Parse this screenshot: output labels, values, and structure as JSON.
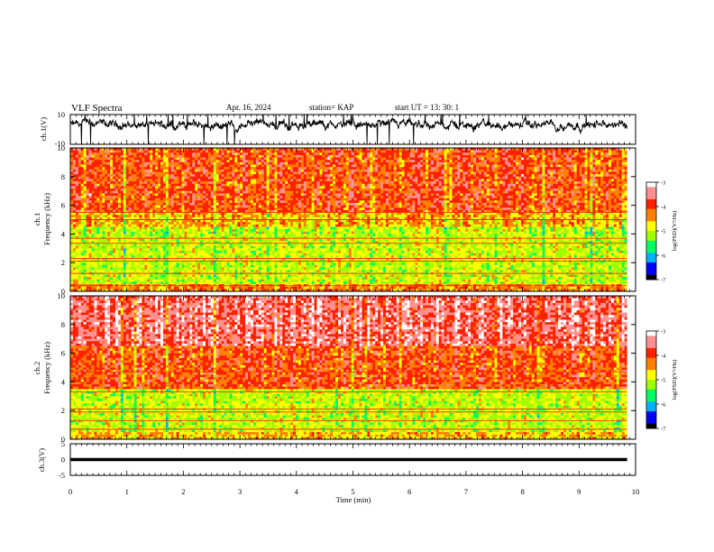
{
  "header": {
    "title": "VLF Spectra",
    "date": "Apr. 16, 2024",
    "station": "station= KAP",
    "start_time": "start UT =  13: 30: 1"
  },
  "colors": {
    "colormap": [
      "#000000",
      "#0000ff",
      "#00b0ff",
      "#00ff60",
      "#a0ff00",
      "#ffff00",
      "#ff8000",
      "#ff2000",
      "#ff9090",
      "#ffffff"
    ]
  },
  "chart_data": [
    {
      "type": "line",
      "name": "ch1-waveform",
      "ylabel": "ch.1(V)",
      "ylim": [
        -10,
        10
      ],
      "yticks": [
        "10",
        "-10"
      ],
      "xlim": [
        0,
        10
      ],
      "note_values": "noisy signal oscillating roughly between -4 and 8 V with spikes clipped at +/-10",
      "mean": 3,
      "amplitude": 3,
      "x_end": 9.85
    },
    {
      "type": "heatmap",
      "name": "ch1-spectrogram",
      "ylabel": "ch.1\nFrequency (kHz)",
      "ylim": [
        0,
        10
      ],
      "yticks": [
        "10",
        "8",
        "6",
        "4",
        "2",
        "0"
      ],
      "xlim": [
        0,
        10
      ],
      "x_end": 9.85,
      "colorbar": {
        "label": "log(PSD)(V²/Hz)",
        "ticks": [
          "-3",
          "-4",
          "-5",
          "-6",
          "-7"
        ],
        "range": [
          -7,
          -3
        ]
      },
      "bands": [
        {
          "f_from": 0,
          "f_to": 0.5,
          "level": -4.3
        },
        {
          "f_from": 0.5,
          "f_to": 4.5,
          "level": -5.0
        },
        {
          "f_from": 4.5,
          "f_to": 5.5,
          "level": -4.5
        },
        {
          "f_from": 5.5,
          "f_to": 10,
          "level": -4.0
        }
      ],
      "lines_khz": [
        0.4,
        1.25,
        2.1,
        2.3,
        3.35,
        3.7,
        5.0,
        5.5
      ]
    },
    {
      "type": "heatmap",
      "name": "ch2-spectrogram",
      "ylabel": "ch.2\nFrequency (kHz)",
      "ylim": [
        0,
        10
      ],
      "yticks": [
        "10",
        "8",
        "6",
        "4",
        "2",
        "0"
      ],
      "xlim": [
        0,
        10
      ],
      "x_end": 9.85,
      "colorbar": {
        "label": "log(PSD)(V²/Hz)",
        "ticks": [
          "-3",
          "-4",
          "-5",
          "-6",
          "-7"
        ],
        "range": [
          -7,
          -3
        ]
      },
      "bands": [
        {
          "f_from": 0,
          "f_to": 0.5,
          "level": -4.5
        },
        {
          "f_from": 0.5,
          "f_to": 3.5,
          "level": -5.0
        },
        {
          "f_from": 3.5,
          "f_to": 6.5,
          "level": -4.0
        },
        {
          "f_from": 6.5,
          "f_to": 10,
          "level": -3.5
        }
      ],
      "lines_khz": [
        0.7,
        1.3,
        1.9,
        2.1,
        3.3,
        4.7
      ]
    },
    {
      "type": "line",
      "name": "ch3-waveform",
      "ylabel": "ch.3(V)",
      "ylim": [
        -5,
        5
      ],
      "yticks": [
        "5",
        "0",
        "-5"
      ],
      "xlim": [
        0,
        10
      ],
      "xlabel": "Time (min)",
      "xticks": [
        "0",
        "1",
        "2",
        "3",
        "4",
        "5",
        "6",
        "7",
        "8",
        "9",
        "10"
      ],
      "mean": 0,
      "band_half_width": 0.5,
      "x_end": 9.85
    }
  ]
}
